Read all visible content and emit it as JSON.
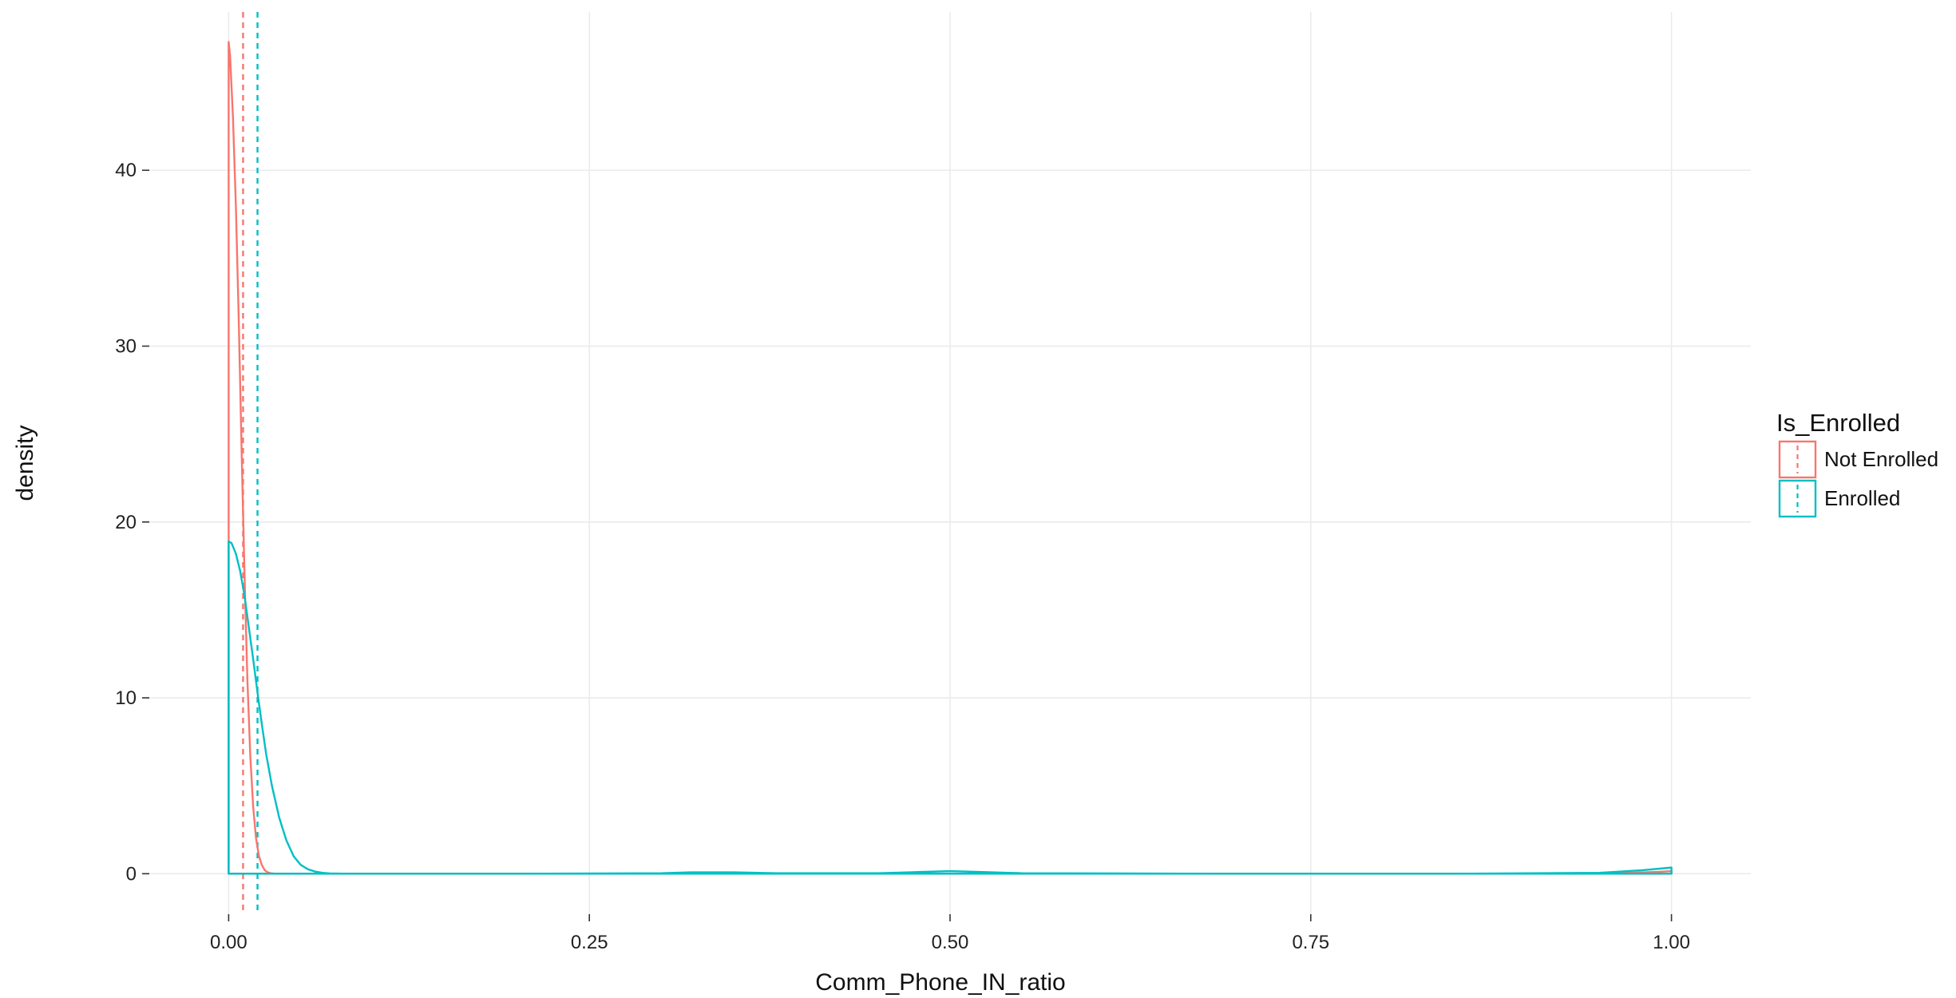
{
  "chart_data": {
    "type": "line",
    "title": "",
    "xlabel": "Comm_Phone_IN_ratio",
    "ylabel": "density",
    "xlim": [
      -0.055,
      1.055
    ],
    "ylim": [
      -2.3,
      49
    ],
    "x_ticks": [
      0.0,
      0.25,
      0.5,
      0.75,
      1.0
    ],
    "x_tick_labels": [
      "0.00",
      "0.25",
      "0.50",
      "0.75",
      "1.00"
    ],
    "y_ticks": [
      0,
      10,
      20,
      30,
      40
    ],
    "y_tick_labels": [
      "0",
      "10",
      "20",
      "30",
      "40"
    ],
    "grid": true,
    "legend": {
      "title": "Is_Enrolled",
      "position": "right",
      "entries": [
        "Not Enrolled",
        "Enrolled"
      ]
    },
    "series": [
      {
        "name": "Not Enrolled",
        "color": "#F8766D",
        "mean_line_x": 0.01,
        "x": [
          0,
          0.001,
          0.003,
          0.005,
          0.007,
          0.009,
          0.011,
          0.013,
          0.015,
          0.017,
          0.019,
          0.021,
          0.023,
          0.025,
          0.027,
          0.029,
          0.031,
          0.033,
          0.1,
          0.3,
          0.5,
          0.7,
          0.95,
          0.99,
          1.0
        ],
        "y": [
          47.3,
          46.5,
          43,
          38,
          31.5,
          24,
          17,
          11,
          6.7,
          3.8,
          2,
          1,
          0.5,
          0.2,
          0.08,
          0.03,
          0.01,
          0,
          0,
          0,
          0,
          0,
          0,
          0.1,
          0.15
        ]
      },
      {
        "name": "Enrolled",
        "color": "#00BFC4",
        "mean_line_x": 0.02,
        "x": [
          0,
          0.002,
          0.005,
          0.008,
          0.011,
          0.014,
          0.017,
          0.02,
          0.023,
          0.026,
          0.03,
          0.035,
          0.04,
          0.045,
          0.05,
          0.055,
          0.06,
          0.065,
          0.07,
          0.075,
          0.08,
          0.1,
          0.2,
          0.3,
          0.32,
          0.35,
          0.38,
          0.45,
          0.48,
          0.5,
          0.52,
          0.55,
          0.7,
          0.85,
          0.95,
          0.98,
          1.0
        ],
        "y": [
          18.9,
          18.8,
          18.2,
          17.2,
          15.8,
          14,
          12.2,
          10.3,
          8.5,
          6.8,
          5,
          3.2,
          1.9,
          1,
          0.5,
          0.25,
          0.12,
          0.05,
          0.02,
          0.01,
          0,
          0,
          0,
          0.03,
          0.08,
          0.08,
          0.03,
          0.03,
          0.1,
          0.15,
          0.1,
          0.03,
          0,
          0,
          0.05,
          0.2,
          0.35
        ]
      }
    ]
  }
}
